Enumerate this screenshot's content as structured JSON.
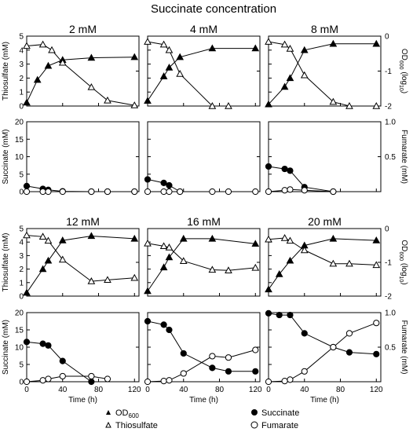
{
  "figure": {
    "title": "Succinate concentration",
    "legend": {
      "od_label": "OD",
      "od_sub": "600",
      "thiosulfate": "Thiosulfate",
      "succinate": "Succinate",
      "fumarate": "Fumarate"
    },
    "axes": {
      "thiosulfate_label": "Thiosulfate (mM)",
      "succinate_label": "Succinate (mM)",
      "fumarate_label": "Fumarate (mM)",
      "od_label_main": "OD",
      "od_label_sub": "600",
      "od_label_tail": " (log",
      "od_label_sub2": "10",
      "od_label_end": ")",
      "time_label": "Time (h)"
    }
  },
  "chart_data": [
    {
      "type": "line",
      "panel": "top",
      "title": "2 mM",
      "x_ticks": [
        0,
        40,
        80,
        120
      ],
      "ylim_left": [
        0,
        5
      ],
      "ylim_right": [
        -2,
        0
      ],
      "left_ticks": [
        0,
        1,
        2,
        3,
        4,
        5
      ],
      "right_ticks": [
        -2,
        -1,
        0
      ],
      "series": [
        {
          "name": "OD600",
          "axis": "right",
          "marker": "filled-triangle",
          "x": [
            0,
            12,
            24,
            40,
            72,
            120
          ],
          "y": [
            -1.9,
            -1.25,
            -0.85,
            -0.68,
            -0.62,
            -0.6
          ]
        },
        {
          "name": "Thiosulfate",
          "axis": "left",
          "marker": "open-triangle",
          "x": [
            0,
            18,
            28,
            40,
            72,
            90,
            120
          ],
          "y": [
            4.3,
            4.4,
            4.0,
            3.1,
            1.35,
            0.4,
            0.05
          ]
        }
      ]
    },
    {
      "type": "line",
      "panel": "top",
      "title": "4 mM",
      "x_ticks": [
        0,
        40,
        80,
        120
      ],
      "ylim_left": [
        0,
        5
      ],
      "ylim_right": [
        -2,
        0
      ],
      "series": [
        {
          "name": "OD600",
          "axis": "right",
          "marker": "filled-triangle",
          "x": [
            0,
            18,
            24,
            36,
            72,
            120
          ],
          "y": [
            -1.85,
            -1.15,
            -0.9,
            -0.6,
            -0.35,
            -0.35
          ]
        },
        {
          "name": "Thiosulfate",
          "axis": "left",
          "marker": "open-triangle",
          "x": [
            0,
            18,
            24,
            36,
            72,
            90
          ],
          "y": [
            4.6,
            4.4,
            4.0,
            2.3,
            0.0,
            0.0
          ]
        }
      ]
    },
    {
      "type": "line",
      "panel": "top",
      "title": "8 mM",
      "x_ticks": [
        0,
        40,
        80,
        120
      ],
      "ylim_left": [
        0,
        5
      ],
      "ylim_right": [
        -2,
        0
      ],
      "series": [
        {
          "name": "OD600",
          "axis": "right",
          "marker": "filled-triangle",
          "x": [
            0,
            18,
            24,
            40,
            72,
            120
          ],
          "y": [
            -1.95,
            -1.45,
            -1.2,
            -0.4,
            -0.22,
            -0.22
          ]
        },
        {
          "name": "Thiosulfate",
          "axis": "left",
          "marker": "open-triangle",
          "x": [
            0,
            18,
            24,
            40,
            72,
            90,
            120
          ],
          "y": [
            4.6,
            4.4,
            4.1,
            2.2,
            0.3,
            0.0,
            0.0
          ]
        }
      ]
    },
    {
      "type": "line",
      "panel": "middle",
      "title": "",
      "x_ticks": [
        0,
        40,
        80,
        120
      ],
      "ylim_left": [
        0,
        20
      ],
      "ylim_right": [
        0,
        1
      ],
      "left_ticks": [
        0,
        5,
        10,
        15,
        20
      ],
      "right_ticks": [
        0.5,
        1.0
      ],
      "series": [
        {
          "name": "Succinate",
          "axis": "left",
          "marker": "filled-circle",
          "x": [
            0,
            18,
            24,
            40,
            72,
            90,
            120
          ],
          "y": [
            1.6,
            0.8,
            0.5,
            0.1,
            0.0,
            0.0,
            0.0
          ]
        },
        {
          "name": "Fumarate",
          "axis": "right",
          "marker": "open-circle",
          "x": [
            0,
            18,
            24,
            40,
            72,
            90,
            120
          ],
          "y": [
            0.0,
            0.0,
            0.0,
            0.0,
            0.0,
            0.0,
            0.0
          ]
        }
      ]
    },
    {
      "type": "line",
      "panel": "middle",
      "title": "",
      "x_ticks": [
        0,
        40,
        80,
        120
      ],
      "ylim_left": [
        0,
        20
      ],
      "ylim_right": [
        0,
        1
      ],
      "series": [
        {
          "name": "Succinate",
          "axis": "left",
          "marker": "filled-circle",
          "x": [
            0,
            18,
            24,
            36
          ],
          "y": [
            3.5,
            2.5,
            1.8,
            0.0
          ]
        },
        {
          "name": "Fumarate",
          "axis": "right",
          "marker": "open-circle",
          "x": [
            0,
            18,
            24,
            36,
            72,
            90,
            120
          ],
          "y": [
            0.0,
            0.0,
            0.0,
            0.0,
            0.0,
            0.0,
            0.0
          ]
        }
      ]
    },
    {
      "type": "line",
      "panel": "middle",
      "title": "",
      "x_ticks": [
        0,
        40,
        80,
        120
      ],
      "ylim_left": [
        0,
        20
      ],
      "ylim_right": [
        0,
        1
      ],
      "series": [
        {
          "name": "Succinate",
          "axis": "left",
          "marker": "filled-circle",
          "x": [
            0,
            18,
            24,
            40,
            72
          ],
          "y": [
            7.2,
            6.5,
            6.0,
            1.3,
            0.0
          ]
        },
        {
          "name": "Fumarate",
          "axis": "right",
          "marker": "open-circle",
          "x": [
            0,
            18,
            24,
            40,
            72
          ],
          "y": [
            0.0,
            0.02,
            0.03,
            0.02,
            0.0
          ]
        }
      ]
    },
    {
      "type": "line",
      "panel": "top",
      "title": "12 mM",
      "x_ticks": [
        0,
        40,
        80,
        120
      ],
      "ylim_left": [
        0,
        5
      ],
      "ylim_right": [
        -2,
        0
      ],
      "series": [
        {
          "name": "OD600",
          "axis": "right",
          "marker": "filled-triangle",
          "x": [
            0,
            18,
            24,
            40,
            72,
            120
          ],
          "y": [
            -1.9,
            -1.2,
            -0.95,
            -0.35,
            -0.22,
            -0.3
          ]
        },
        {
          "name": "Thiosulfate",
          "axis": "left",
          "marker": "open-triangle",
          "x": [
            0,
            18,
            24,
            40,
            72,
            90,
            120
          ],
          "y": [
            4.5,
            4.4,
            4.1,
            2.7,
            1.1,
            1.2,
            1.35
          ]
        }
      ]
    },
    {
      "type": "line",
      "panel": "top",
      "title": "16 mM",
      "x_ticks": [
        0,
        40,
        80,
        120
      ],
      "ylim_left": [
        0,
        5
      ],
      "ylim_right": [
        -2,
        0
      ],
      "series": [
        {
          "name": "OD600",
          "axis": "right",
          "marker": "filled-triangle",
          "x": [
            0,
            18,
            24,
            40,
            72,
            120
          ],
          "y": [
            -1.85,
            -1.15,
            -0.85,
            -0.3,
            -0.3,
            -0.45
          ]
        },
        {
          "name": "Thiosulfate",
          "axis": "left",
          "marker": "open-triangle",
          "x": [
            0,
            18,
            24,
            40,
            72,
            90,
            120
          ],
          "y": [
            3.9,
            3.7,
            3.6,
            2.6,
            1.95,
            1.9,
            2.1
          ]
        }
      ]
    },
    {
      "type": "line",
      "panel": "top",
      "title": "20 mM",
      "x_ticks": [
        0,
        40,
        80,
        120
      ],
      "ylim_left": [
        0,
        5
      ],
      "ylim_right": [
        -2,
        0
      ],
      "series": [
        {
          "name": "OD600",
          "axis": "right",
          "marker": "filled-triangle",
          "x": [
            0,
            12,
            24,
            40,
            72,
            120
          ],
          "y": [
            -1.8,
            -1.35,
            -0.95,
            -0.5,
            -0.3,
            -0.35
          ]
        },
        {
          "name": "Thiosulfate",
          "axis": "left",
          "marker": "open-triangle",
          "x": [
            0,
            18,
            24,
            40,
            72,
            90,
            120
          ],
          "y": [
            4.2,
            4.3,
            4.1,
            3.4,
            2.4,
            2.4,
            2.3
          ]
        }
      ]
    },
    {
      "type": "line",
      "panel": "bottom",
      "title": "",
      "x_ticks": [
        0,
        40,
        80,
        120
      ],
      "ylim_left": [
        0,
        20
      ],
      "ylim_right": [
        0,
        1
      ],
      "left_ticks": [
        0,
        5,
        10,
        15,
        20
      ],
      "right_ticks": [
        0.5,
        1.0
      ],
      "series": [
        {
          "name": "Succinate",
          "axis": "left",
          "marker": "filled-circle",
          "x": [
            0,
            18,
            24,
            40,
            72
          ],
          "y": [
            11.5,
            11.0,
            10.5,
            6.0,
            0.0
          ]
        },
        {
          "name": "Fumarate",
          "axis": "right",
          "marker": "open-circle",
          "x": [
            0,
            18,
            24,
            40,
            72,
            90
          ],
          "y": [
            0.0,
            0.02,
            0.04,
            0.08,
            0.08,
            0.04
          ]
        }
      ]
    },
    {
      "type": "line",
      "panel": "bottom",
      "title": "",
      "x_ticks": [
        0,
        40,
        80,
        120
      ],
      "ylim_left": [
        0,
        20
      ],
      "ylim_right": [
        0,
        1
      ],
      "series": [
        {
          "name": "Succinate",
          "axis": "left",
          "marker": "filled-circle",
          "x": [
            0,
            18,
            24,
            40,
            72,
            90,
            120
          ],
          "y": [
            17.5,
            16.5,
            15.0,
            8.2,
            4.0,
            3.0,
            3.0
          ]
        },
        {
          "name": "Fumarate",
          "axis": "right",
          "marker": "open-circle",
          "x": [
            0,
            18,
            24,
            40,
            72,
            90,
            120
          ],
          "y": [
            0.0,
            0.01,
            0.02,
            0.12,
            0.37,
            0.35,
            0.46
          ]
        }
      ]
    },
    {
      "type": "line",
      "panel": "bottom",
      "title": "",
      "x_ticks": [
        0,
        40,
        80,
        120
      ],
      "ylim_left": [
        0,
        20
      ],
      "ylim_right": [
        0,
        1
      ],
      "series": [
        {
          "name": "Succinate",
          "axis": "left",
          "marker": "filled-circle",
          "x": [
            0,
            12,
            24,
            40,
            72,
            90,
            120
          ],
          "y": [
            19.8,
            19.3,
            19.3,
            14.0,
            10.0,
            8.5,
            8.0
          ]
        },
        {
          "name": "Fumarate",
          "axis": "right",
          "marker": "open-circle",
          "x": [
            0,
            18,
            24,
            40,
            72,
            90,
            120
          ],
          "y": [
            0.0,
            0.01,
            0.03,
            0.15,
            0.5,
            0.7,
            0.85
          ]
        }
      ]
    }
  ]
}
